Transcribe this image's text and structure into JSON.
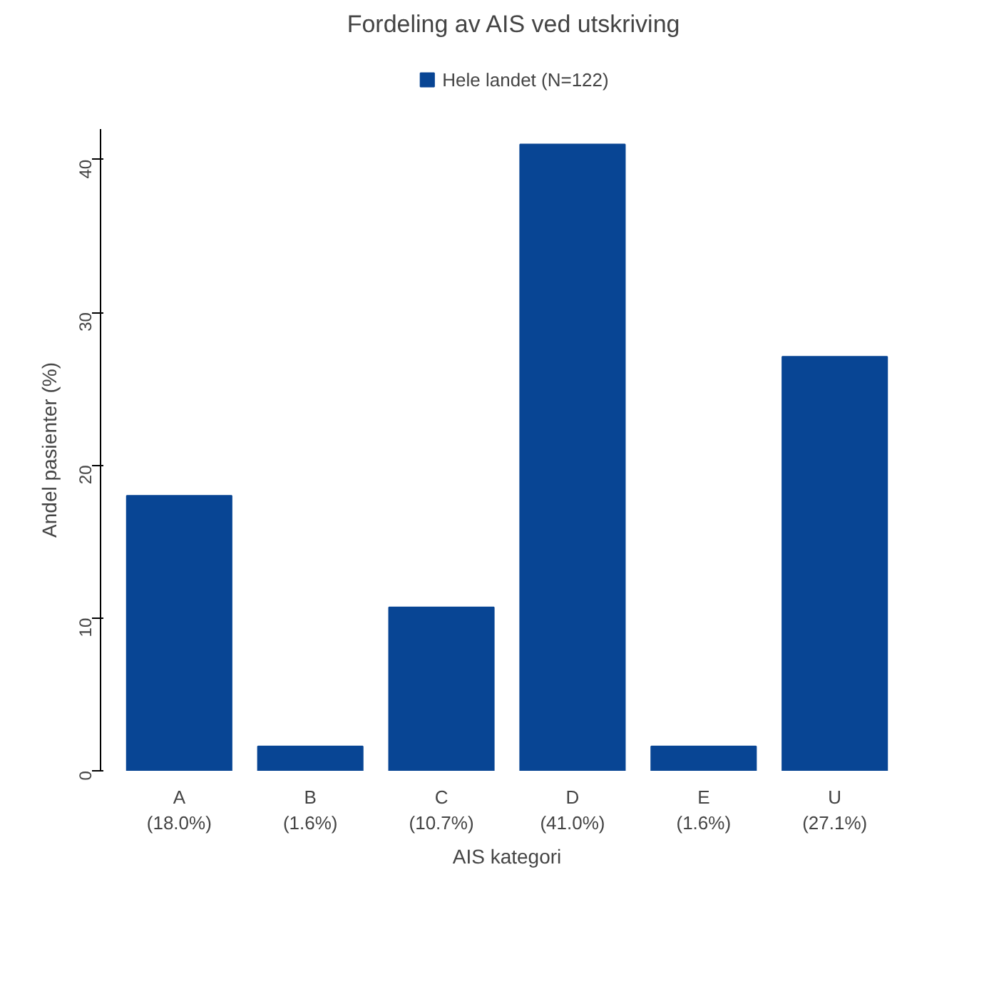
{
  "chart_data": {
    "type": "bar",
    "title": "Fordeling av AIS ved utskriving",
    "xlabel": "AIS kategori",
    "ylabel": "Andel pasienter (%)",
    "categories": [
      "A",
      "B",
      "C",
      "D",
      "E",
      "U"
    ],
    "series": [
      {
        "name": "Hele landet (N=122)",
        "color": "#084594",
        "values": [
          18.0,
          1.6,
          10.7,
          41.0,
          1.6,
          27.1
        ],
        "value_labels": [
          "(18.0%)",
          "(1.6%)",
          "(10.7%)",
          "(41.0%)",
          "(1.6%)",
          "(27.1%)"
        ]
      }
    ],
    "ylim": [
      0,
      42
    ],
    "yticks": [
      0,
      10,
      20,
      30,
      40
    ],
    "grid": false,
    "legend": "top"
  }
}
